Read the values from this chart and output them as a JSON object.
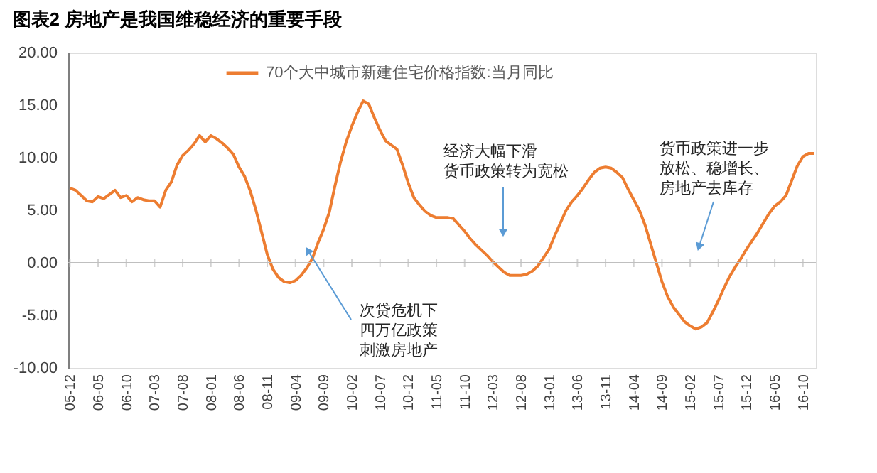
{
  "chart_data": {
    "type": "line",
    "title": "图表2    房地产是我国维稳经济的重要手段",
    "categories": [
      "05-12",
      null,
      null,
      null,
      null,
      "06-05",
      null,
      null,
      null,
      null,
      "06-10",
      null,
      null,
      null,
      null,
      "07-03",
      null,
      null,
      null,
      null,
      "07-08",
      null,
      null,
      null,
      null,
      "08-01",
      null,
      null,
      null,
      null,
      "08-06",
      null,
      null,
      null,
      null,
      "08-11",
      null,
      null,
      null,
      null,
      "09-04",
      null,
      null,
      null,
      null,
      "09-09",
      null,
      null,
      null,
      null,
      "10-02",
      null,
      null,
      null,
      null,
      "10-07",
      null,
      null,
      null,
      null,
      "10-12",
      null,
      null,
      null,
      null,
      "11-05",
      null,
      null,
      null,
      null,
      "11-10",
      null,
      null,
      null,
      null,
      "12-03",
      null,
      null,
      null,
      null,
      "12-08",
      null,
      null,
      null,
      null,
      "13-01",
      null,
      null,
      null,
      null,
      "13-06",
      null,
      null,
      null,
      null,
      "13-11",
      null,
      null,
      null,
      null,
      "14-04",
      null,
      null,
      null,
      null,
      "14-09",
      null,
      null,
      null,
      null,
      "15-02",
      null,
      null,
      null,
      null,
      "15-07",
      null,
      null,
      null,
      null,
      "15-12",
      null,
      null,
      null,
      null,
      "16-05",
      null,
      null,
      null,
      null,
      "16-10",
      null,
      null
    ],
    "series": [
      {
        "name": "70个大中城市新建住宅价格指数:当月同比",
        "color": "#ed7d31",
        "values": [
          7.1,
          6.9,
          6.4,
          5.9,
          5.8,
          6.3,
          6.1,
          6.5,
          6.9,
          6.2,
          6.4,
          5.8,
          6.2,
          6.0,
          5.9,
          5.9,
          5.3,
          6.9,
          7.7,
          9.3,
          10.2,
          10.7,
          11.3,
          12.1,
          11.5,
          12.1,
          11.8,
          11.4,
          10.9,
          10.3,
          9.1,
          8.2,
          6.8,
          5.0,
          2.9,
          0.8,
          -0.6,
          -1.4,
          -1.8,
          -1.9,
          -1.7,
          -1.2,
          -0.5,
          0.4,
          1.9,
          3.2,
          4.8,
          7.3,
          9.6,
          11.5,
          13.0,
          14.3,
          15.4,
          15.1,
          13.8,
          12.6,
          11.6,
          11.2,
          10.8,
          9.3,
          7.6,
          6.2,
          5.5,
          4.9,
          4.5,
          4.3,
          4.3,
          4.3,
          4.2,
          3.6,
          3.0,
          2.3,
          1.7,
          1.2,
          0.7,
          0.1,
          -0.4,
          -0.9,
          -1.2,
          -1.2,
          -1.2,
          -1.1,
          -0.8,
          -0.3,
          0.5,
          1.3,
          2.6,
          3.8,
          5.0,
          5.8,
          6.4,
          7.1,
          7.9,
          8.6,
          9.0,
          9.1,
          9.0,
          8.6,
          8.1,
          7.0,
          6.0,
          5.0,
          3.6,
          1.8,
          0.0,
          -1.8,
          -3.2,
          -4.2,
          -4.9,
          -5.6,
          -6.0,
          -6.3,
          -6.1,
          -5.7,
          -4.7,
          -3.6,
          -2.4,
          -1.3,
          -0.4,
          0.4,
          1.3,
          2.1,
          2.9,
          3.8,
          4.7,
          5.4,
          5.8,
          6.4,
          7.8,
          9.2,
          10.1,
          10.4,
          10.4
        ]
      }
    ],
    "ylim": [
      -10,
      20
    ],
    "yticks": [
      {
        "value": -10,
        "label": "-10.00"
      },
      {
        "value": -5,
        "label": "-5.00"
      },
      {
        "value": 0,
        "label": "0.00"
      },
      {
        "value": 5,
        "label": "5.00"
      },
      {
        "value": 10,
        "label": "10.00"
      },
      {
        "value": 15,
        "label": "15.00"
      },
      {
        "value": 20,
        "label": "20.00"
      }
    ],
    "ref_lines": [
      {
        "axis": "y",
        "value": 0,
        "label": null,
        "color": "#bfbfbf"
      }
    ],
    "annotations": [
      "次贷危机下四万亿政策刺激房地产",
      "经济大幅下滑货币政策转为宽松",
      "货币政策进一步放松、稳增长、房地产去库存"
    ],
    "legend": "top",
    "grid": false,
    "marker": "none",
    "line_style": "solid"
  }
}
